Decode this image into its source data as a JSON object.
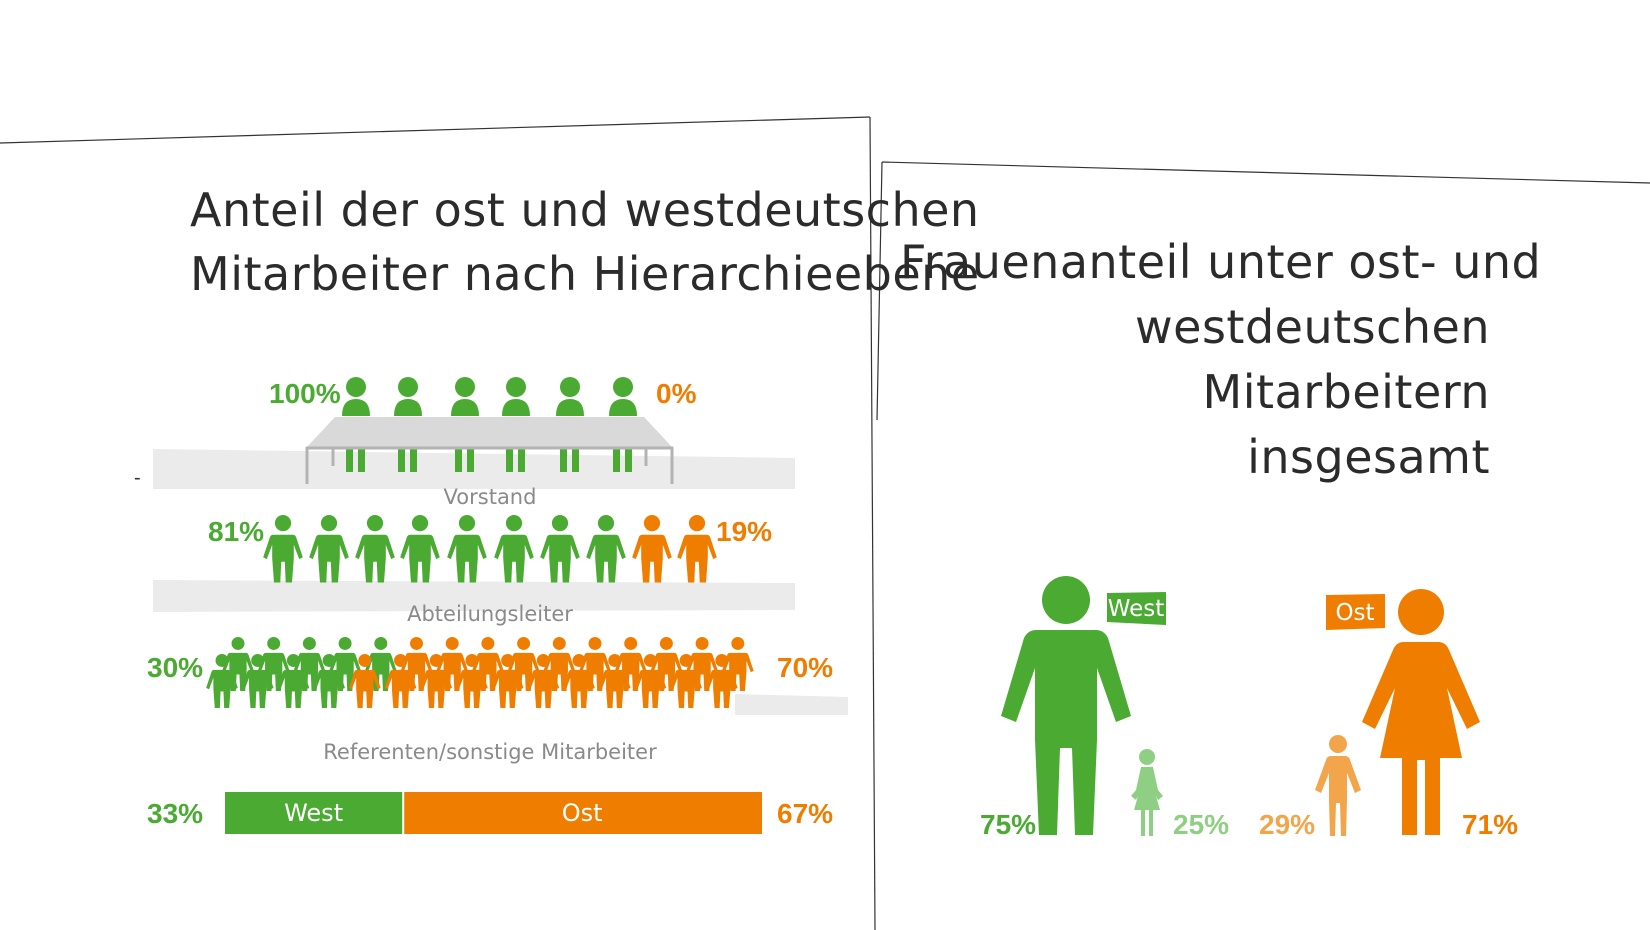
{
  "left_title": [
    "Anteil der ost und westdeutschen",
    "Mitarbeiter nach Hierarchieebene"
  ],
  "right_title": [
    "Frauenanteil unter ost- und",
    "westdeutschen",
    "Mitarbeitern",
    "insgesamt"
  ],
  "colors": {
    "west": "#4aaa32",
    "ost": "#ef7d00",
    "west_light": "#8fcf83",
    "ost_light": "#f2a54a",
    "band": "#ebebeb",
    "table": "#d9d9d9",
    "label": "#8a8a8a"
  },
  "icons": [
    "person-icon",
    "seated-person-icon",
    "table-icon",
    "man-icon",
    "woman-icon",
    "girl-icon",
    "boy-icon"
  ],
  "chart_data": [
    {
      "type": "pictogram",
      "title": "Anteil der ost und westdeutschen Mitarbeiter nach Hierarchieebene",
      "categories": [
        "Vorstand",
        "Abteilungsleiter",
        "Referenten/sonstige Mitarbeiter"
      ],
      "series": [
        {
          "name": "West",
          "values": [
            100,
            81,
            30
          ]
        },
        {
          "name": "Ost",
          "values": [
            0,
            19,
            70
          ]
        }
      ],
      "icon_counts": {
        "west": [
          6,
          8,
          9
        ],
        "ost": [
          0,
          2,
          21
        ]
      },
      "value_labels": {
        "west": [
          "100%",
          "81%",
          "30%"
        ],
        "ost": [
          "0%",
          "19%",
          "70%"
        ]
      },
      "total_bar": {
        "segments": [
          {
            "label": "West",
            "value": 33,
            "value_label": "33%"
          },
          {
            "label": "Ost",
            "value": 67,
            "value_label": "67%"
          }
        ]
      },
      "tick": "-"
    },
    {
      "type": "pictogram",
      "title": "Frauenanteil unter ost- und westdeutschen Mitarbeitern insgesamt",
      "groups": [
        {
          "label": "West",
          "values": [
            75,
            25
          ],
          "value_labels": [
            "75%",
            "25%"
          ]
        },
        {
          "label": "Ost",
          "values": [
            29,
            71
          ],
          "value_labels": [
            "29%",
            "71%"
          ]
        }
      ]
    }
  ]
}
